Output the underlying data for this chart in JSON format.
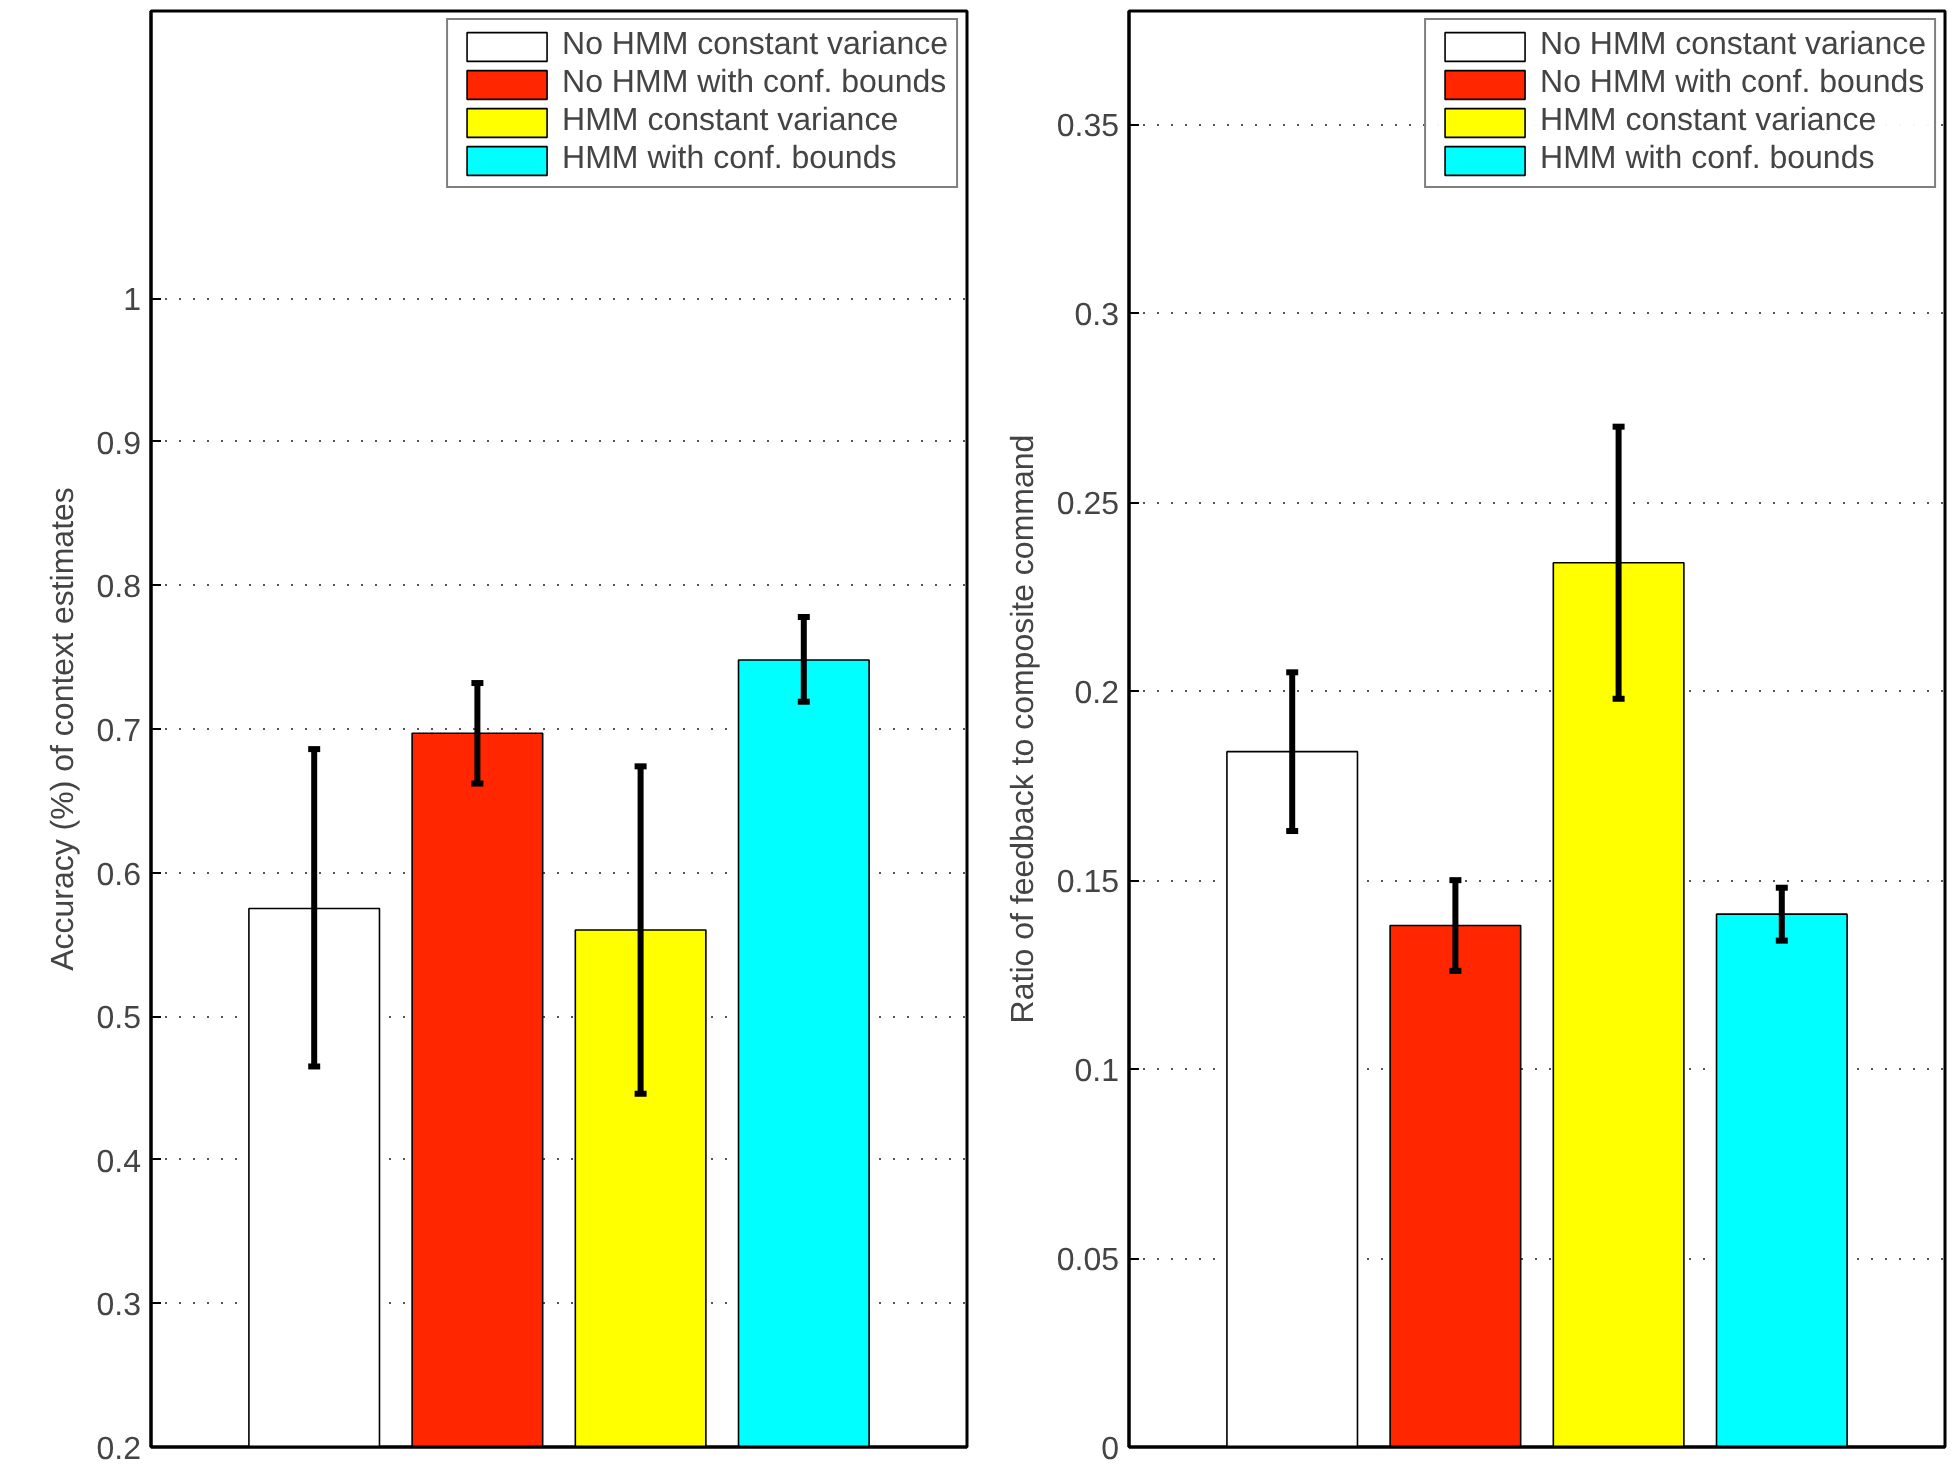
{
  "chart_data": [
    {
      "type": "bar",
      "ylabel": "Accuracy (%) of context estimates",
      "categories": [
        null
      ],
      "ylim": [
        0.2,
        1.2
      ],
      "yticks": [
        0.2,
        0.3,
        0.4,
        0.5,
        0.6,
        0.7,
        0.8,
        0.9,
        1
      ],
      "grid": "y",
      "legend": "top right",
      "series": [
        {
          "name": "No HMM constant variance",
          "color": "#ffffff",
          "values": [
            0.575
          ],
          "errors": [
            [
              0.465,
              0.686
            ]
          ]
        },
        {
          "name": "No HMM with conf. bounds",
          "color": "#ff2600",
          "values": [
            0.697
          ],
          "errors": [
            [
              0.662,
              0.732
            ]
          ]
        },
        {
          "name": "HMM constant variance",
          "color": "#ffff00",
          "values": [
            0.56
          ],
          "errors": [
            [
              0.446,
              0.674
            ]
          ]
        },
        {
          "name": "HMM with conf. bounds",
          "color": "#00ffff",
          "values": [
            0.748
          ],
          "errors": [
            [
              0.719,
              0.778
            ]
          ]
        }
      ]
    },
    {
      "type": "bar",
      "ylabel": "Ratio of feedback to composite command",
      "categories": [
        null
      ],
      "ylim": [
        0,
        0.38
      ],
      "yticks": [
        0,
        0.05,
        0.1,
        0.15,
        0.2,
        0.25,
        0.3,
        0.35
      ],
      "grid": "y",
      "legend": "top right",
      "series": [
        {
          "name": "No HMM constant variance",
          "color": "#ffffff",
          "values": [
            0.184
          ],
          "errors": [
            [
              0.163,
              0.205
            ]
          ]
        },
        {
          "name": "No HMM with conf. bounds",
          "color": "#ff2600",
          "values": [
            0.138
          ],
          "errors": [
            [
              0.126,
              0.15
            ]
          ]
        },
        {
          "name": "HMM constant variance",
          "color": "#ffff00",
          "values": [
            0.234
          ],
          "errors": [
            [
              0.198,
              0.27
            ]
          ]
        },
        {
          "name": "HMM with conf. bounds",
          "color": "#00ffff",
          "values": [
            0.141
          ],
          "errors": [
            [
              0.134,
              0.148
            ]
          ]
        }
      ]
    }
  ]
}
